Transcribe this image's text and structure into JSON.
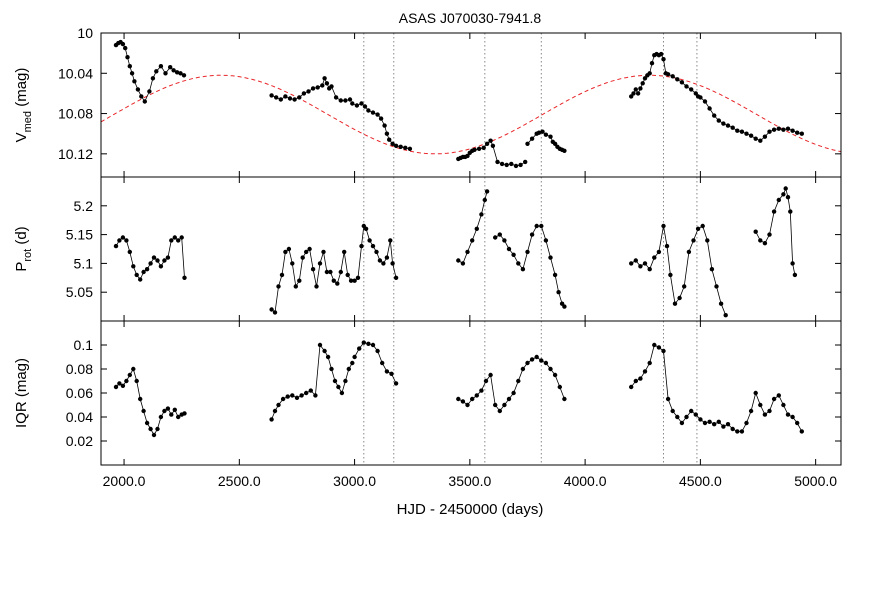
{
  "chart_data": {
    "type": "scatter",
    "title": "ASAS J070030-7941.8",
    "xlabel": "HJD - 2450000 (days)",
    "xlim": [
      1900,
      5110
    ],
    "x_ticks": [
      2000,
      2500,
      3000,
      3500,
      4000,
      4500,
      5000
    ],
    "x_tick_labels": [
      "2000.0",
      "2500.0",
      "3000.0",
      "3500.0",
      "4000.0",
      "4500.0",
      "5000.0"
    ],
    "vertical_lines": [
      3040,
      3170,
      3565,
      3810,
      4340,
      4485
    ],
    "colors": {
      "data": "#000000",
      "fit": "#e8262a",
      "vlines": "#888888"
    },
    "panels": [
      {
        "ylabel_main": "V",
        "ylabel_sub": "med",
        "ylabel_unit": "(mag)",
        "ylim": [
          10.143,
          10.0
        ],
        "y_ticks": [
          10.0,
          10.04,
          10.08,
          10.12
        ],
        "y_tick_labels": [
          "10",
          "10.04",
          "10.08",
          "10.12"
        ],
        "series": [
          {
            "x": [
              1965,
              1975,
              1985,
              1995,
              2005,
              2015,
              2025,
              2035,
              2045,
              2060,
              2075,
              2090,
              2110,
              2125,
              2140,
              2160,
              2180,
              2200,
              2215,
              2230,
              2245,
              2260
            ],
            "y": [
              10.012,
              10.01,
              10.009,
              10.011,
              10.015,
              10.024,
              10.033,
              10.04,
              10.048,
              10.056,
              10.063,
              10.068,
              10.058,
              10.045,
              10.038,
              10.033,
              10.04,
              10.034,
              10.037,
              10.039,
              10.04,
              10.042
            ]
          },
          {
            "x": [
              2640,
              2660,
              2680,
              2700,
              2720,
              2740,
              2760,
              2780,
              2800,
              2820,
              2840,
              2860,
              2870,
              2880,
              2890,
              2900,
              2920,
              2940,
              2960,
              2980
            ],
            "y": [
              10.062,
              10.064,
              10.066,
              10.063,
              10.065,
              10.066,
              10.064,
              10.06,
              10.058,
              10.055,
              10.054,
              10.052,
              10.045,
              10.05,
              10.055,
              10.053,
              10.064,
              10.067,
              10.067,
              10.066
            ]
          },
          {
            "x": [
              2990,
              3010,
              3030,
              3045,
              3060,
              3080,
              3100,
              3115,
              3130,
              3140,
              3150,
              3165,
              3180,
              3200,
              3220,
              3240
            ],
            "y": [
              10.07,
              10.072,
              10.07,
              10.073,
              10.077,
              10.079,
              10.081,
              10.085,
              10.092,
              10.1,
              10.106,
              10.11,
              10.112,
              10.113,
              10.114,
              10.115
            ]
          },
          {
            "x": [
              3450,
              3460,
              3470,
              3480,
              3490,
              3500,
              3510,
              3520,
              3540,
              3560,
              3575,
              3590,
              3600,
              3620,
              3640,
              3660,
              3680,
              3700,
              3720,
              3740
            ],
            "y": [
              10.125,
              10.124,
              10.123,
              10.123,
              10.122,
              10.119,
              10.117,
              10.116,
              10.115,
              10.114,
              10.11,
              10.107,
              10.112,
              10.128,
              10.13,
              10.131,
              10.13,
              10.132,
              10.131,
              10.128
            ]
          },
          {
            "x": [
              3750,
              3770,
              3790,
              3800,
              3815,
              3830,
              3850,
              3860,
              3870,
              3880,
              3890,
              3900,
              3910
            ],
            "y": [
              10.11,
              10.105,
              10.1,
              10.099,
              10.098,
              10.101,
              10.103,
              10.108,
              10.11,
              10.113,
              10.115,
              10.116,
              10.117
            ]
          },
          {
            "x": [
              4200,
              4210,
              4220,
              4230,
              4240,
              4250,
              4260,
              4270,
              4280,
              4290,
              4300,
              4310,
              4320,
              4330,
              4340,
              4350,
              4360,
              4380,
              4400,
              4420,
              4440,
              4460,
              4480
            ],
            "y": [
              10.063,
              10.06,
              10.056,
              10.06,
              10.055,
              10.05,
              10.045,
              10.042,
              10.04,
              10.03,
              10.022,
              10.021,
              10.022,
              10.021,
              10.026,
              10.04,
              10.041,
              10.043,
              10.046,
              10.049,
              10.053,
              10.056,
              10.06
            ]
          },
          {
            "x": [
              4490,
              4500,
              4520,
              4540,
              4560,
              4580,
              4600,
              4620,
              4640,
              4660,
              4680,
              4700,
              4720,
              4740,
              4760,
              4780,
              4800,
              4820,
              4840,
              4860,
              4880,
              4900,
              4920,
              4940
            ],
            "y": [
              10.063,
              10.064,
              10.068,
              10.075,
              10.082,
              10.087,
              10.09,
              10.092,
              10.094,
              10.097,
              10.098,
              10.1,
              10.102,
              10.105,
              10.107,
              10.103,
              10.098,
              10.096,
              10.095,
              10.096,
              10.095,
              10.097,
              10.099,
              10.1
            ]
          }
        ],
        "fit": {
          "mean": 10.081,
          "amplitude": 0.039,
          "period": 1860,
          "peak_x": 2420
        }
      },
      {
        "ylabel_main": "P",
        "ylabel_sub": "rot",
        "ylabel_unit": "(d)",
        "ylim": [
          5.0,
          5.25
        ],
        "y_ticks": [
          5.05,
          5.1,
          5.15,
          5.2
        ],
        "y_tick_labels": [
          "5.05",
          "5.1",
          "5.15",
          "5.2"
        ],
        "series": [
          {
            "x": [
              1965,
              1980,
              1995,
              2010,
              2025,
              2040,
              2055,
              2070,
              2085,
              2100,
              2115,
              2130,
              2145,
              2160,
              2175,
              2190,
              2205,
              2220,
              2235,
              2250,
              2262
            ],
            "y": [
              5.13,
              5.14,
              5.145,
              5.14,
              5.12,
              5.095,
              5.08,
              5.072,
              5.085,
              5.09,
              5.1,
              5.11,
              5.105,
              5.095,
              5.105,
              5.11,
              5.14,
              5.145,
              5.14,
              5.145,
              5.075
            ]
          },
          {
            "x": [
              2640,
              2655,
              2670,
              2685,
              2700,
              2715,
              2730,
              2745,
              2760,
              2775,
              2790,
              2805,
              2820,
              2835,
              2850,
              2865,
              2880,
              2895,
              2910,
              2925,
              2940,
              2955,
              2970,
              2985
            ],
            "y": [
              5.02,
              5.015,
              5.06,
              5.08,
              5.12,
              5.125,
              5.1,
              5.06,
              5.07,
              5.11,
              5.12,
              5.125,
              5.09,
              5.06,
              5.1,
              5.12,
              5.085,
              5.085,
              5.07,
              5.065,
              5.085,
              5.12,
              5.08,
              5.07
            ]
          },
          {
            "x": [
              3000,
              3015,
              3030,
              3040,
              3050,
              3065,
              3080,
              3095,
              3110,
              3125,
              3140,
              3155,
              3165,
              3180
            ],
            "y": [
              5.07,
              5.075,
              5.13,
              5.165,
              5.16,
              5.14,
              5.13,
              5.12,
              5.105,
              5.1,
              5.11,
              5.14,
              5.1,
              5.075
            ]
          },
          {
            "x": [
              3450,
              3470,
              3490,
              3510,
              3530,
              3550,
              3565,
              3575
            ],
            "y": [
              5.105,
              5.1,
              5.12,
              5.14,
              5.16,
              5.185,
              5.21,
              5.225
            ]
          },
          {
            "x": [
              3610,
              3630,
              3650,
              3670,
              3690,
              3710,
              3730,
              3750,
              3770,
              3790,
              3810,
              3830,
              3850,
              3870,
              3885,
              3900,
              3910
            ],
            "y": [
              5.145,
              5.15,
              5.14,
              5.125,
              5.115,
              5.1,
              5.09,
              5.12,
              5.15,
              5.165,
              5.165,
              5.14,
              5.11,
              5.08,
              5.05,
              5.03,
              5.025
            ]
          },
          {
            "x": [
              4200,
              4220,
              4240,
              4260,
              4280,
              4300,
              4320,
              4340,
              4355,
              4370,
              4390,
              4410,
              4430,
              4450,
              4470,
              4490,
              4510,
              4530,
              4550,
              4570,
              4590,
              4610
            ],
            "y": [
              5.1,
              5.105,
              5.095,
              5.1,
              5.09,
              5.11,
              5.12,
              5.165,
              5.13,
              5.08,
              5.03,
              5.04,
              5.06,
              5.12,
              5.14,
              5.16,
              5.165,
              5.14,
              5.09,
              5.06,
              5.03,
              5.01
            ]
          },
          {
            "x": [
              4740,
              4760,
              4780,
              4800,
              4820,
              4840,
              4860,
              4870,
              4880,
              4890,
              4900,
              4910
            ],
            "y": [
              5.155,
              5.14,
              5.135,
              5.15,
              5.19,
              5.21,
              5.22,
              5.23,
              5.215,
              5.19,
              5.1,
              5.08
            ]
          }
        ]
      },
      {
        "ylabel_main": "IQR",
        "ylabel_sub": "",
        "ylabel_unit": "(mag)",
        "ylim": [
          0.0,
          0.12
        ],
        "y_ticks": [
          0.02,
          0.04,
          0.06,
          0.08,
          0.1
        ],
        "y_tick_labels": [
          "0.02",
          "0.04",
          "0.06",
          "0.08",
          "0.1"
        ],
        "series": [
          {
            "x": [
              1965,
              1980,
              1995,
              2010,
              2025,
              2040,
              2055,
              2070,
              2085,
              2100,
              2115,
              2130,
              2145,
              2160,
              2175,
              2190,
              2205,
              2220,
              2235,
              2250,
              2262
            ],
            "y": [
              0.065,
              0.068,
              0.066,
              0.07,
              0.075,
              0.08,
              0.07,
              0.055,
              0.045,
              0.035,
              0.03,
              0.025,
              0.03,
              0.04,
              0.045,
              0.047,
              0.042,
              0.046,
              0.04,
              0.042,
              0.043
            ]
          },
          {
            "x": [
              2640,
              2655,
              2670,
              2690,
              2710,
              2730,
              2750,
              2770,
              2790,
              2810,
              2830,
              2850,
              2870,
              2885,
              2900,
              2915,
              2930,
              2945,
              2960,
              2975,
              2990
            ],
            "y": [
              0.038,
              0.045,
              0.05,
              0.055,
              0.057,
              0.058,
              0.056,
              0.058,
              0.06,
              0.062,
              0.058,
              0.1,
              0.095,
              0.09,
              0.08,
              0.07,
              0.065,
              0.06,
              0.07,
              0.08,
              0.085
            ]
          },
          {
            "x": [
              3000,
              3020,
              3040,
              3060,
              3080,
              3100,
              3120,
              3140,
              3160,
              3180
            ],
            "y": [
              0.09,
              0.097,
              0.102,
              0.101,
              0.1,
              0.095,
              0.085,
              0.078,
              0.076,
              0.068
            ]
          },
          {
            "x": [
              3450,
              3470,
              3490,
              3510,
              3530,
              3550,
              3570,
              3590,
              3610,
              3630,
              3650,
              3670,
              3690,
              3710,
              3730,
              3750,
              3770,
              3790,
              3810,
              3830,
              3850,
              3870,
              3890,
              3910
            ],
            "y": [
              0.055,
              0.053,
              0.05,
              0.055,
              0.058,
              0.062,
              0.07,
              0.075,
              0.05,
              0.045,
              0.05,
              0.055,
              0.06,
              0.07,
              0.08,
              0.085,
              0.088,
              0.09,
              0.087,
              0.085,
              0.08,
              0.075,
              0.065,
              0.055
            ]
          },
          {
            "x": [
              4200,
              4220,
              4240,
              4260,
              4280,
              4300,
              4320,
              4340,
              4360,
              4380,
              4400,
              4420,
              4440,
              4460,
              4480,
              4500,
              4520,
              4540,
              4560,
              4580,
              4600,
              4620,
              4640,
              4660,
              4680,
              4700,
              4720,
              4740,
              4760,
              4780,
              4800,
              4820,
              4840,
              4860,
              4880,
              4900,
              4920,
              4940
            ],
            "y": [
              0.065,
              0.07,
              0.072,
              0.078,
              0.085,
              0.1,
              0.098,
              0.095,
              0.055,
              0.045,
              0.04,
              0.035,
              0.04,
              0.045,
              0.042,
              0.038,
              0.035,
              0.036,
              0.034,
              0.036,
              0.032,
              0.034,
              0.03,
              0.028,
              0.028,
              0.035,
              0.045,
              0.06,
              0.05,
              0.042,
              0.045,
              0.055,
              0.058,
              0.05,
              0.042,
              0.04,
              0.035,
              0.028
            ]
          }
        ]
      }
    ]
  }
}
